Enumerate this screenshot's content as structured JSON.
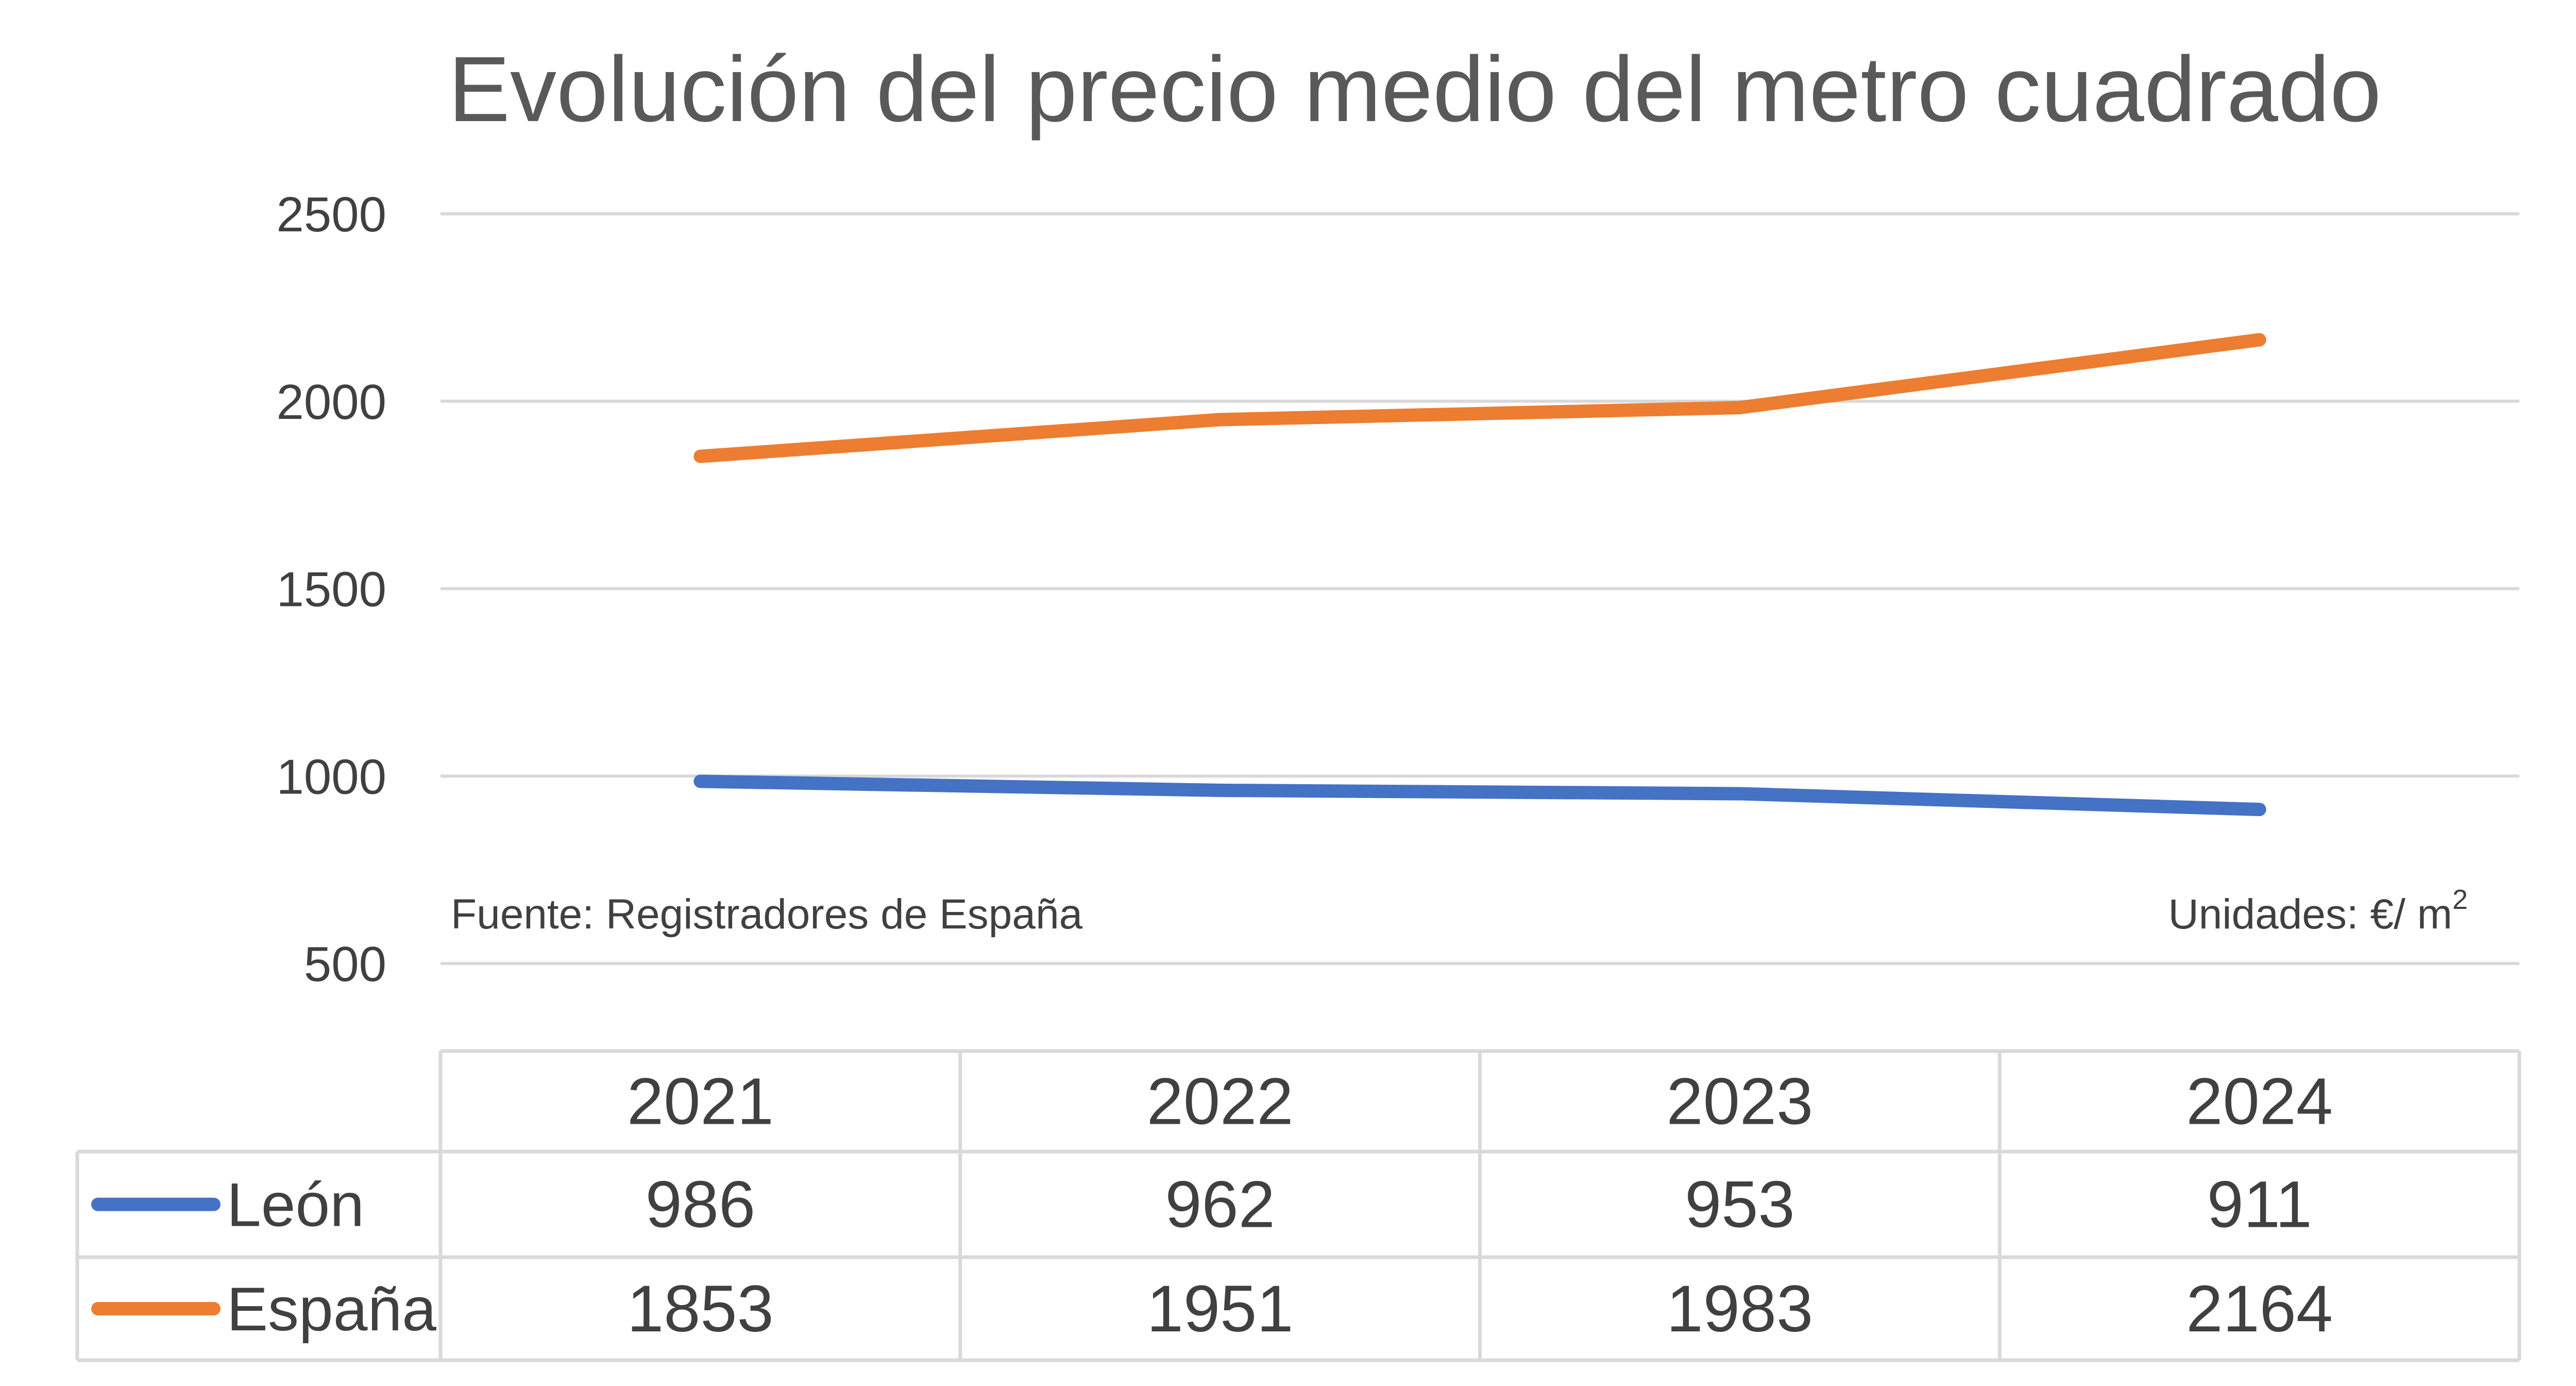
{
  "chart_data": {
    "type": "line",
    "title": "Evolución del precio medio del metro cuadrado",
    "categories": [
      "2021",
      "2022",
      "2023",
      "2024"
    ],
    "series": [
      {
        "name": "León",
        "values": [
          986,
          962,
          953,
          911
        ],
        "color": "#4472C4"
      },
      {
        "name": "España",
        "values": [
          1853,
          1951,
          1983,
          2164
        ],
        "color": "#ED7D31"
      }
    ],
    "yticks": [
      "2500",
      "2000",
      "1500",
      "1000",
      "500"
    ],
    "ylim": [
      500,
      2500
    ],
    "grid": true,
    "legend": "data-table-left",
    "source_note": "Fuente: Registradores de España",
    "units_note": "Unidades: €/ m",
    "units_superscript": "2",
    "xlabel": "",
    "ylabel": ""
  }
}
